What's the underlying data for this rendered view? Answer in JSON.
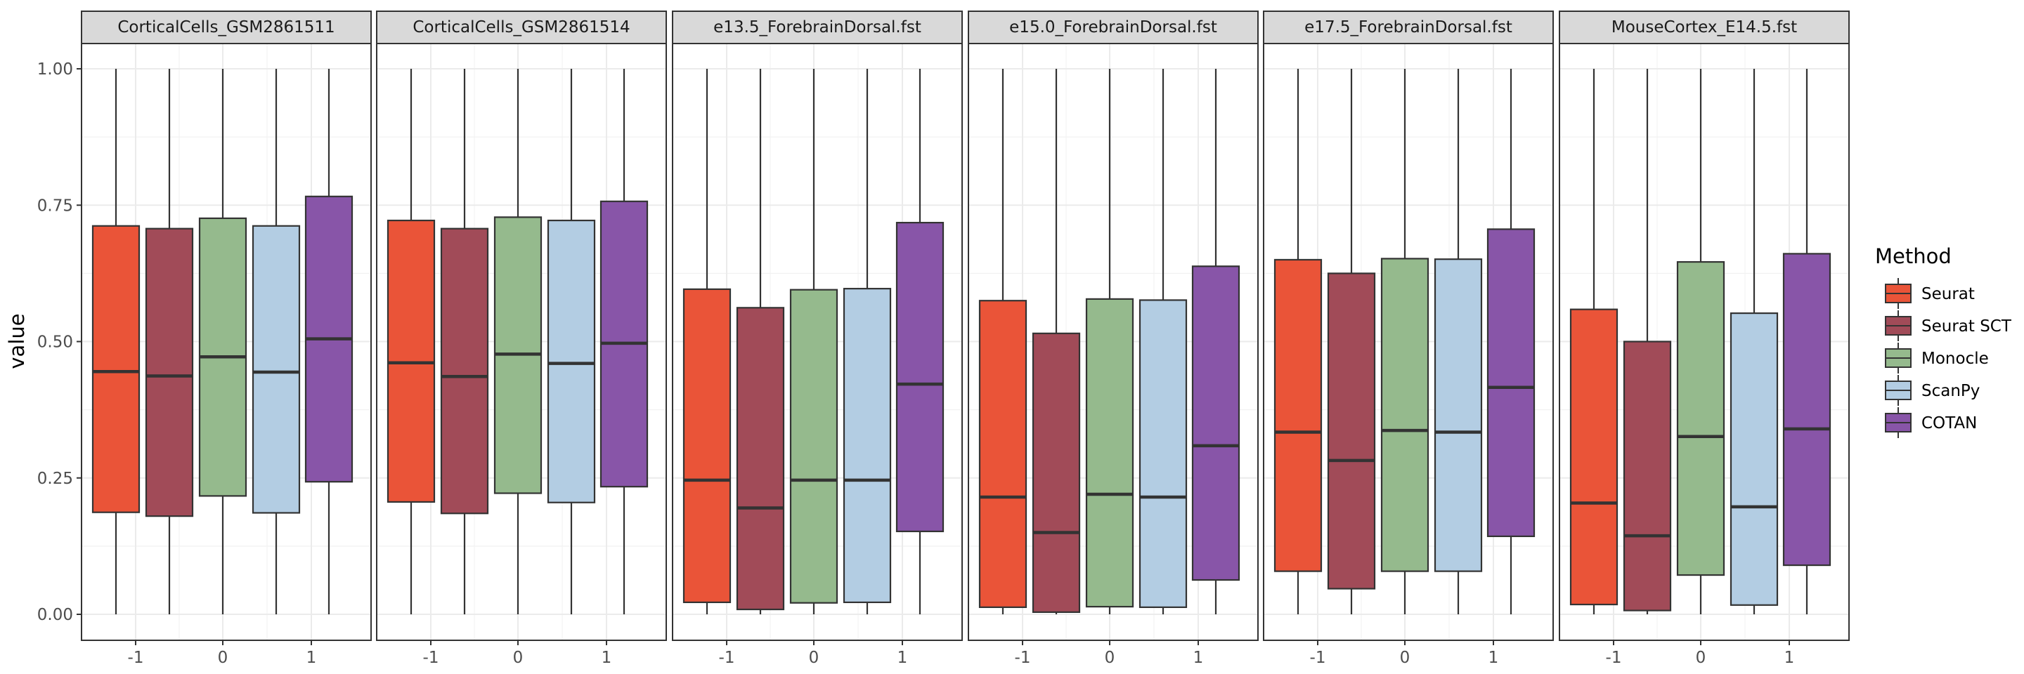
{
  "chart_data": {
    "type": "boxplot",
    "ylabel": "value",
    "ylim": [
      0,
      1
    ],
    "y_ticks": [
      0,
      0.25,
      0.5,
      0.75,
      1.0
    ],
    "y_tick_labels": [
      "0.00",
      "0.25",
      "0.50",
      "0.75",
      "1.00"
    ],
    "x_tick_labels": [
      "-1",
      "0",
      "1"
    ],
    "legend": {
      "title": "Method",
      "position": "right",
      "entries": [
        {
          "name": "Seurat",
          "color": "#EA5438"
        },
        {
          "name": "Seurat SCT",
          "color": "#A14B58"
        },
        {
          "name": "Monocle",
          "color": "#95BA8D"
        },
        {
          "name": "ScanPy",
          "color": "#B3CDE3"
        },
        {
          "name": "COTAN",
          "color": "#8855A8"
        }
      ]
    },
    "panels": [
      {
        "title": "CorticalCells_GSM2861511",
        "boxes": [
          {
            "method": "Seurat",
            "min": 0,
            "q1": 0.187,
            "median": 0.445,
            "q3": 0.712,
            "max": 1
          },
          {
            "method": "Seurat SCT",
            "min": 0,
            "q1": 0.18,
            "median": 0.437,
            "q3": 0.707,
            "max": 1
          },
          {
            "method": "Monocle",
            "min": 0,
            "q1": 0.217,
            "median": 0.472,
            "q3": 0.726,
            "max": 1
          },
          {
            "method": "ScanPy",
            "min": 0,
            "q1": 0.186,
            "median": 0.444,
            "q3": 0.712,
            "max": 1
          },
          {
            "method": "COTAN",
            "min": 0,
            "q1": 0.243,
            "median": 0.505,
            "q3": 0.766,
            "max": 1
          }
        ]
      },
      {
        "title": "CorticalCells_GSM2861514",
        "boxes": [
          {
            "method": "Seurat",
            "min": 0,
            "q1": 0.206,
            "median": 0.461,
            "q3": 0.722,
            "max": 1
          },
          {
            "method": "Seurat SCT",
            "min": 0,
            "q1": 0.185,
            "median": 0.436,
            "q3": 0.707,
            "max": 1
          },
          {
            "method": "Monocle",
            "min": 0,
            "q1": 0.222,
            "median": 0.477,
            "q3": 0.728,
            "max": 1
          },
          {
            "method": "ScanPy",
            "min": 0,
            "q1": 0.205,
            "median": 0.46,
            "q3": 0.722,
            "max": 1
          },
          {
            "method": "COTAN",
            "min": 0,
            "q1": 0.234,
            "median": 0.497,
            "q3": 0.757,
            "max": 1
          }
        ]
      },
      {
        "title": "e13.5_ForebrainDorsal.fst",
        "boxes": [
          {
            "method": "Seurat",
            "min": 0,
            "q1": 0.022,
            "median": 0.246,
            "q3": 0.596,
            "max": 1
          },
          {
            "method": "Seurat SCT",
            "min": 0,
            "q1": 0.009,
            "median": 0.195,
            "q3": 0.562,
            "max": 1
          },
          {
            "method": "Monocle",
            "min": 0,
            "q1": 0.021,
            "median": 0.246,
            "q3": 0.595,
            "max": 1
          },
          {
            "method": "ScanPy",
            "min": 0,
            "q1": 0.022,
            "median": 0.246,
            "q3": 0.597,
            "max": 1
          },
          {
            "method": "COTAN",
            "min": 0,
            "q1": 0.152,
            "median": 0.422,
            "q3": 0.718,
            "max": 1
          }
        ]
      },
      {
        "title": "e15.0_ForebrainDorsal.fst",
        "boxes": [
          {
            "method": "Seurat",
            "min": 0,
            "q1": 0.013,
            "median": 0.215,
            "q3": 0.575,
            "max": 1
          },
          {
            "method": "Seurat SCT",
            "min": 0,
            "q1": 0.004,
            "median": 0.15,
            "q3": 0.515,
            "max": 1
          },
          {
            "method": "Monocle",
            "min": 0,
            "q1": 0.014,
            "median": 0.22,
            "q3": 0.578,
            "max": 1
          },
          {
            "method": "ScanPy",
            "min": 0,
            "q1": 0.013,
            "median": 0.215,
            "q3": 0.576,
            "max": 1
          },
          {
            "method": "COTAN",
            "min": 0,
            "q1": 0.063,
            "median": 0.309,
            "q3": 0.638,
            "max": 1
          }
        ]
      },
      {
        "title": "e17.5_ForebrainDorsal.fst",
        "boxes": [
          {
            "method": "Seurat",
            "min": 0,
            "q1": 0.079,
            "median": 0.334,
            "q3": 0.65,
            "max": 1
          },
          {
            "method": "Seurat SCT",
            "min": 0,
            "q1": 0.047,
            "median": 0.282,
            "q3": 0.625,
            "max": 1
          },
          {
            "method": "Monocle",
            "min": 0,
            "q1": 0.079,
            "median": 0.337,
            "q3": 0.652,
            "max": 1
          },
          {
            "method": "ScanPy",
            "min": 0,
            "q1": 0.079,
            "median": 0.334,
            "q3": 0.651,
            "max": 1
          },
          {
            "method": "COTAN",
            "min": 0,
            "q1": 0.143,
            "median": 0.416,
            "q3": 0.706,
            "max": 1
          }
        ]
      },
      {
        "title": "MouseCortex_E14.5.fst",
        "boxes": [
          {
            "method": "Seurat",
            "min": 0,
            "q1": 0.018,
            "median": 0.204,
            "q3": 0.559,
            "max": 1
          },
          {
            "method": "Seurat SCT",
            "min": 0,
            "q1": 0.007,
            "median": 0.144,
            "q3": 0.5,
            "max": 1
          },
          {
            "method": "Monocle",
            "min": 0,
            "q1": 0.072,
            "median": 0.326,
            "q3": 0.646,
            "max": 1
          },
          {
            "method": "ScanPy",
            "min": 0,
            "q1": 0.017,
            "median": 0.197,
            "q3": 0.552,
            "max": 1
          },
          {
            "method": "COTAN",
            "min": 0,
            "q1": 0.09,
            "median": 0.34,
            "q3": 0.661,
            "max": 1
          }
        ]
      }
    ]
  }
}
